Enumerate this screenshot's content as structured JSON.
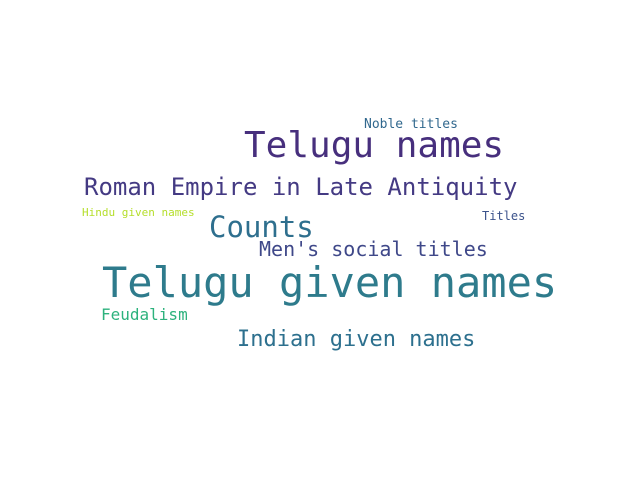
{
  "words": [
    {
      "text": "Telugu given names",
      "color": "#2e7b8c"
    },
    {
      "text": "Telugu names",
      "color": "#472f7d"
    },
    {
      "text": "Roman Empire in Late Antiquity",
      "color": "#443a83"
    },
    {
      "text": "Counts",
      "color": "#2e6f8e"
    },
    {
      "text": "Men's social titles",
      "color": "#3f4889"
    },
    {
      "text": "Indian given names",
      "color": "#2d708e"
    },
    {
      "text": "Feudalism",
      "color": "#2db27d"
    },
    {
      "text": "Noble titles",
      "color": "#31688e"
    },
    {
      "text": "Titles",
      "color": "#3b528b"
    },
    {
      "text": "Hindu given names",
      "color": "#b5de2b"
    }
  ]
}
